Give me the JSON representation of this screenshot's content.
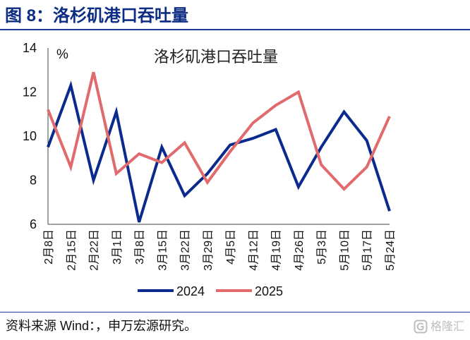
{
  "header": {
    "figure_label": "图 8：洛杉矶港口吞吐量"
  },
  "source": {
    "text": "资料来源 Wind：，申万宏源研究。"
  },
  "watermark": {
    "icon": "gelonghui-logo-icon",
    "text": "格隆汇"
  },
  "colors": {
    "header_text": "#0c2d83",
    "rule": "#1d3b91",
    "axis": "#444444",
    "watermark": "#b8b8b8"
  },
  "chart_data": {
    "type": "line",
    "title": "洛杉矶港口吞吐量",
    "ylabel": "%",
    "ylim": [
      6,
      14
    ],
    "yticks": [
      6,
      8,
      10,
      12,
      14
    ],
    "grid": false,
    "legend_position": "bottom",
    "categories": [
      "2月8日",
      "2月15日",
      "2月22日",
      "3月1日",
      "3月8日",
      "3月15日",
      "3月22日",
      "3月29日",
      "4月5日",
      "4月12日",
      "4月19日",
      "4月26日",
      "5月3日",
      "5月10日",
      "5月17日",
      "5月24日"
    ],
    "series": [
      {
        "name": "2024",
        "color": "#0b2a8e",
        "values": [
          9.5,
          12.3,
          8.0,
          11.1,
          6.1,
          9.5,
          7.3,
          8.3,
          9.6,
          9.9,
          10.3,
          7.7,
          9.5,
          11.1,
          9.8,
          6.6
        ]
      },
      {
        "name": "2025",
        "color": "#e06a6c",
        "values": [
          11.2,
          8.6,
          12.9,
          8.3,
          9.2,
          8.8,
          9.7,
          7.9,
          9.3,
          10.6,
          11.4,
          12.0,
          8.7,
          7.6,
          8.6,
          10.9
        ]
      }
    ]
  }
}
